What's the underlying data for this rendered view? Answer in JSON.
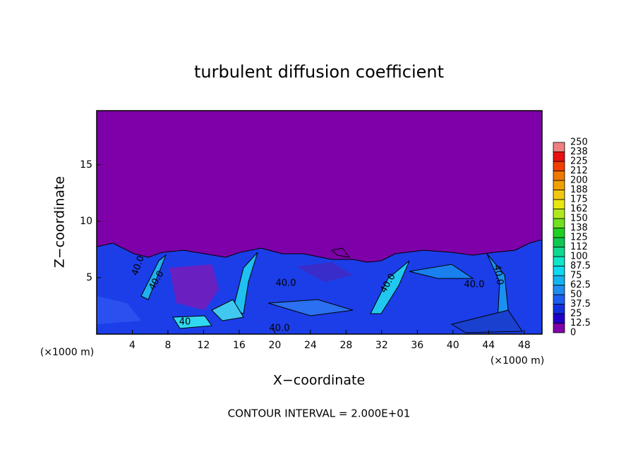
{
  "chart_data": {
    "type": "contour",
    "title": "turbulent diffusion coefficient",
    "xlabel": "X−coordinate",
    "ylabel": "Z−coordinate",
    "axis_unit": "(×1000 m)",
    "footnote": "CONTOUR INTERVAL = 2.000E+01",
    "xlim": [
      0,
      50
    ],
    "ylim": [
      0,
      19.8
    ],
    "xticks": [
      4,
      8,
      12,
      16,
      20,
      24,
      28,
      32,
      36,
      40,
      44,
      48
    ],
    "yticks": [
      5,
      10,
      15
    ],
    "contour_labels": [
      "40.0",
      "40.0",
      "40",
      "40.0",
      "40.0",
      "40.0",
      "40.0",
      "40.0"
    ],
    "colorbar": {
      "levels": [
        0,
        12.5,
        25,
        37.5,
        50,
        62.5,
        75,
        87.5,
        100,
        112,
        125,
        138,
        150,
        162,
        175,
        188,
        200,
        212,
        225,
        238,
        250
      ],
      "colors": [
        "#7d00a8",
        "#2000c8",
        "#1030e0",
        "#1c5ef0",
        "#1e8cf0",
        "#14b4f0",
        "#10d8f0",
        "#10e6c8",
        "#10d890",
        "#10c850",
        "#20d020",
        "#70e020",
        "#b0e820",
        "#e8e810",
        "#f0c810",
        "#f0a000",
        "#f07800",
        "#f04000",
        "#e81010",
        "#f08080"
      ]
    }
  }
}
